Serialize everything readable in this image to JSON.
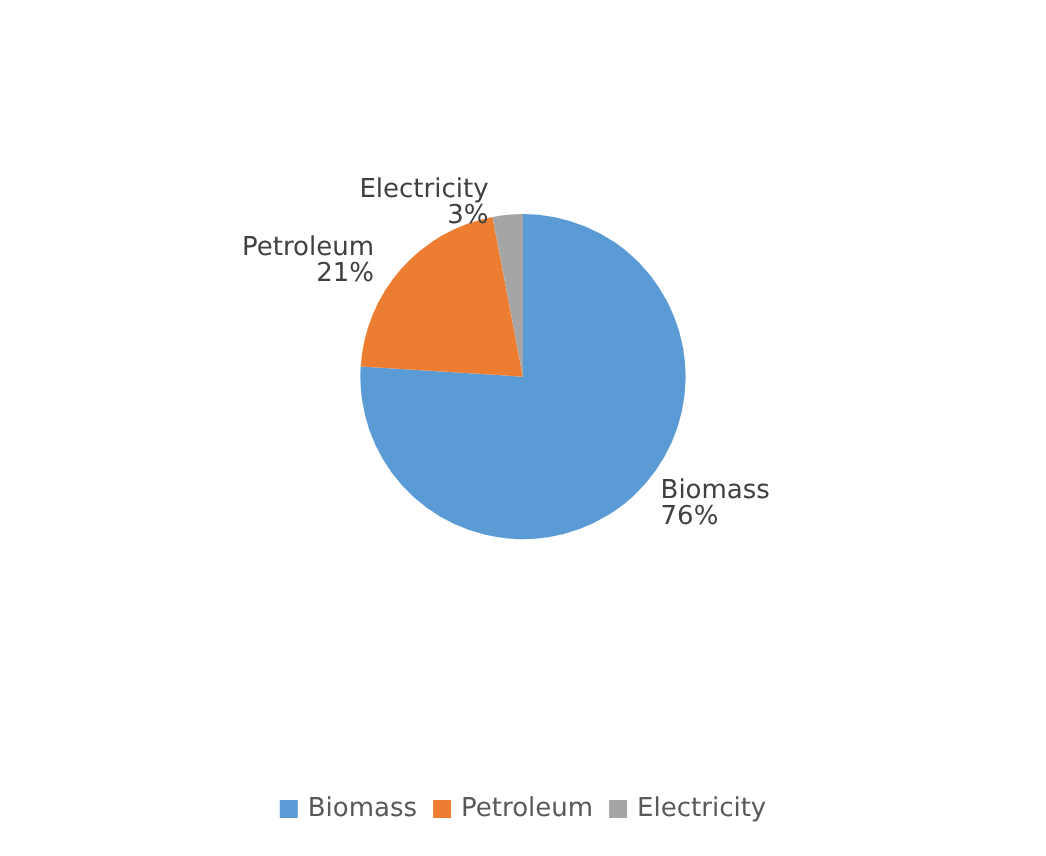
{
  "chart_data": {
    "type": "pie",
    "categories": [
      "Biomass",
      "Petroleum",
      "Electricity"
    ],
    "values": [
      76,
      21,
      3
    ],
    "value_labels": [
      "76%",
      "21%",
      "3%"
    ],
    "colors": [
      "#5b9bd5",
      "#ed7d31",
      "#a5a5a5"
    ],
    "legend": "bottom"
  }
}
